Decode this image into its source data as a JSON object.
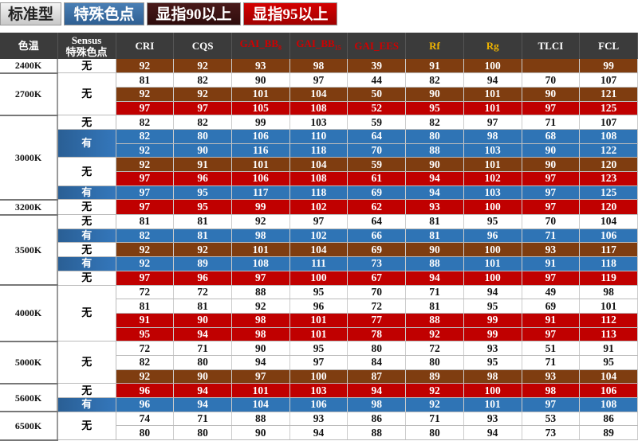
{
  "legend": [
    {
      "label": "标准型",
      "style": "standard"
    },
    {
      "label": "特殊色点",
      "style": "special"
    },
    {
      "label": "显指90以上",
      "style": "cri90"
    },
    {
      "label": "显指95以上",
      "style": "cri95"
    }
  ],
  "colors": {
    "white": "#ffffff",
    "brown": "#7f3d10",
    "red": "#c00000",
    "blue": "#2f74b5",
    "header": "#3b3b3b",
    "gai_text": "#d00000",
    "rf_rg_text": "#f0b400"
  },
  "headers": [
    {
      "label": "色温",
      "cls": ""
    },
    {
      "label": "Sensus\n特殊色点",
      "cls": ""
    },
    {
      "label": "CRI",
      "cls": ""
    },
    {
      "label": "CQS",
      "cls": ""
    },
    {
      "label": "GAI_BB",
      "sub": "8",
      "cls": "red"
    },
    {
      "label": "GAI_BB",
      "sub": "15",
      "cls": "red"
    },
    {
      "label": "GAI_EES",
      "cls": "red"
    },
    {
      "label": "Rf",
      "cls": "gold"
    },
    {
      "label": "Rg",
      "cls": "gold"
    },
    {
      "label": "TLCI",
      "cls": ""
    },
    {
      "label": "FCL",
      "cls": ""
    }
  ],
  "groups": [
    {
      "cct": "2400K",
      "sensus": [
        {
          "label": "无",
          "span": 1
        }
      ],
      "rows": [
        {
          "c": "b",
          "v": [
            "92",
            "92",
            "93",
            "98",
            "39",
            "91",
            "100",
            "",
            "99"
          ]
        }
      ]
    },
    {
      "cct": "2700K",
      "sensus": [
        {
          "label": "无",
          "span": 3
        }
      ],
      "rows": [
        {
          "c": "w",
          "v": [
            "81",
            "82",
            "90",
            "97",
            "44",
            "82",
            "94",
            "70",
            "107"
          ]
        },
        {
          "c": "b",
          "v": [
            "92",
            "92",
            "101",
            "104",
            "50",
            "90",
            "101",
            "90",
            "121"
          ]
        },
        {
          "c": "r",
          "v": [
            "97",
            "97",
            "105",
            "108",
            "52",
            "95",
            "101",
            "97",
            "125"
          ]
        }
      ]
    },
    {
      "cct": "3000K",
      "sensus": [
        {
          "label": "无",
          "span": 1
        },
        {
          "label": "有",
          "span": 2
        },
        {
          "label": "无",
          "span": 2
        },
        {
          "label": "有",
          "span": 1
        }
      ],
      "rows": [
        {
          "c": "w",
          "v": [
            "82",
            "82",
            "99",
            "103",
            "59",
            "82",
            "97",
            "71",
            "107"
          ]
        },
        {
          "c": "u",
          "v": [
            "82",
            "80",
            "106",
            "110",
            "64",
            "80",
            "98",
            "68",
            "108"
          ]
        },
        {
          "c": "u",
          "v": [
            "92",
            "90",
            "116",
            "118",
            "70",
            "88",
            "103",
            "90",
            "122"
          ]
        },
        {
          "c": "b",
          "v": [
            "92",
            "91",
            "101",
            "104",
            "59",
            "90",
            "101",
            "90",
            "120"
          ]
        },
        {
          "c": "r",
          "v": [
            "97",
            "96",
            "106",
            "108",
            "61",
            "94",
            "102",
            "97",
            "123"
          ]
        },
        {
          "c": "u",
          "v": [
            "97",
            "95",
            "117",
            "118",
            "69",
            "94",
            "103",
            "97",
            "125"
          ]
        }
      ]
    },
    {
      "cct": "3200K",
      "sensus": [
        {
          "label": "无",
          "span": 1
        }
      ],
      "rows": [
        {
          "c": "r",
          "v": [
            "97",
            "95",
            "99",
            "102",
            "62",
            "93",
            "100",
            "97",
            "120"
          ]
        }
      ]
    },
    {
      "cct": "3500K",
      "sensus": [
        {
          "label": "无",
          "span": 1
        },
        {
          "label": "有",
          "span": 1
        },
        {
          "label": "无",
          "span": 1
        },
        {
          "label": "有",
          "span": 1
        },
        {
          "label": "无",
          "span": 1
        }
      ],
      "rows": [
        {
          "c": "w",
          "v": [
            "81",
            "81",
            "92",
            "97",
            "64",
            "81",
            "95",
            "70",
            "104"
          ]
        },
        {
          "c": "u",
          "v": [
            "82",
            "81",
            "98",
            "102",
            "66",
            "81",
            "96",
            "71",
            "106"
          ]
        },
        {
          "c": "b",
          "v": [
            "92",
            "92",
            "101",
            "104",
            "69",
            "90",
            "100",
            "93",
            "117"
          ]
        },
        {
          "c": "u",
          "v": [
            "92",
            "89",
            "108",
            "111",
            "73",
            "88",
            "101",
            "91",
            "118"
          ]
        },
        {
          "c": "r",
          "v": [
            "97",
            "96",
            "97",
            "100",
            "67",
            "94",
            "100",
            "97",
            "119"
          ]
        }
      ]
    },
    {
      "cct": "4000K",
      "sensus": [
        {
          "label": "无",
          "span": 4
        }
      ],
      "rows": [
        {
          "c": "w",
          "v": [
            "72",
            "72",
            "88",
            "95",
            "70",
            "71",
            "94",
            "49",
            "98"
          ]
        },
        {
          "c": "w",
          "v": [
            "81",
            "81",
            "92",
            "96",
            "72",
            "81",
            "95",
            "69",
            "101"
          ]
        },
        {
          "c": "r",
          "v": [
            "91",
            "90",
            "98",
            "101",
            "77",
            "88",
            "99",
            "91",
            "112"
          ]
        },
        {
          "c": "r",
          "v": [
            "95",
            "94",
            "98",
            "101",
            "78",
            "92",
            "99",
            "97",
            "113"
          ]
        }
      ]
    },
    {
      "cct": "5000K",
      "sensus": [
        {
          "label": "无",
          "span": 3
        }
      ],
      "rows": [
        {
          "c": "w",
          "v": [
            "72",
            "71",
            "90",
            "95",
            "80",
            "72",
            "93",
            "51",
            "91"
          ]
        },
        {
          "c": "w",
          "v": [
            "82",
            "80",
            "94",
            "97",
            "84",
            "80",
            "95",
            "71",
            "95"
          ]
        },
        {
          "c": "b",
          "v": [
            "92",
            "90",
            "97",
            "100",
            "87",
            "89",
            "98",
            "93",
            "104"
          ]
        }
      ]
    },
    {
      "cct": "5600K",
      "sensus": [
        {
          "label": "无",
          "span": 1
        },
        {
          "label": "有",
          "span": 1
        }
      ],
      "rows": [
        {
          "c": "r",
          "v": [
            "96",
            "94",
            "101",
            "103",
            "94",
            "92",
            "100",
            "98",
            "106"
          ]
        },
        {
          "c": "u",
          "v": [
            "96",
            "94",
            "104",
            "106",
            "98",
            "92",
            "101",
            "97",
            "108"
          ]
        }
      ]
    },
    {
      "cct": "6500K",
      "sensus": [
        {
          "label": "无",
          "span": 2
        }
      ],
      "rows": [
        {
          "c": "w",
          "v": [
            "74",
            "71",
            "88",
            "93",
            "86",
            "71",
            "93",
            "53",
            "86"
          ]
        },
        {
          "c": "w",
          "v": [
            "80",
            "80",
            "90",
            "94",
            "88",
            "80",
            "94",
            "73",
            "89"
          ]
        }
      ]
    }
  ]
}
